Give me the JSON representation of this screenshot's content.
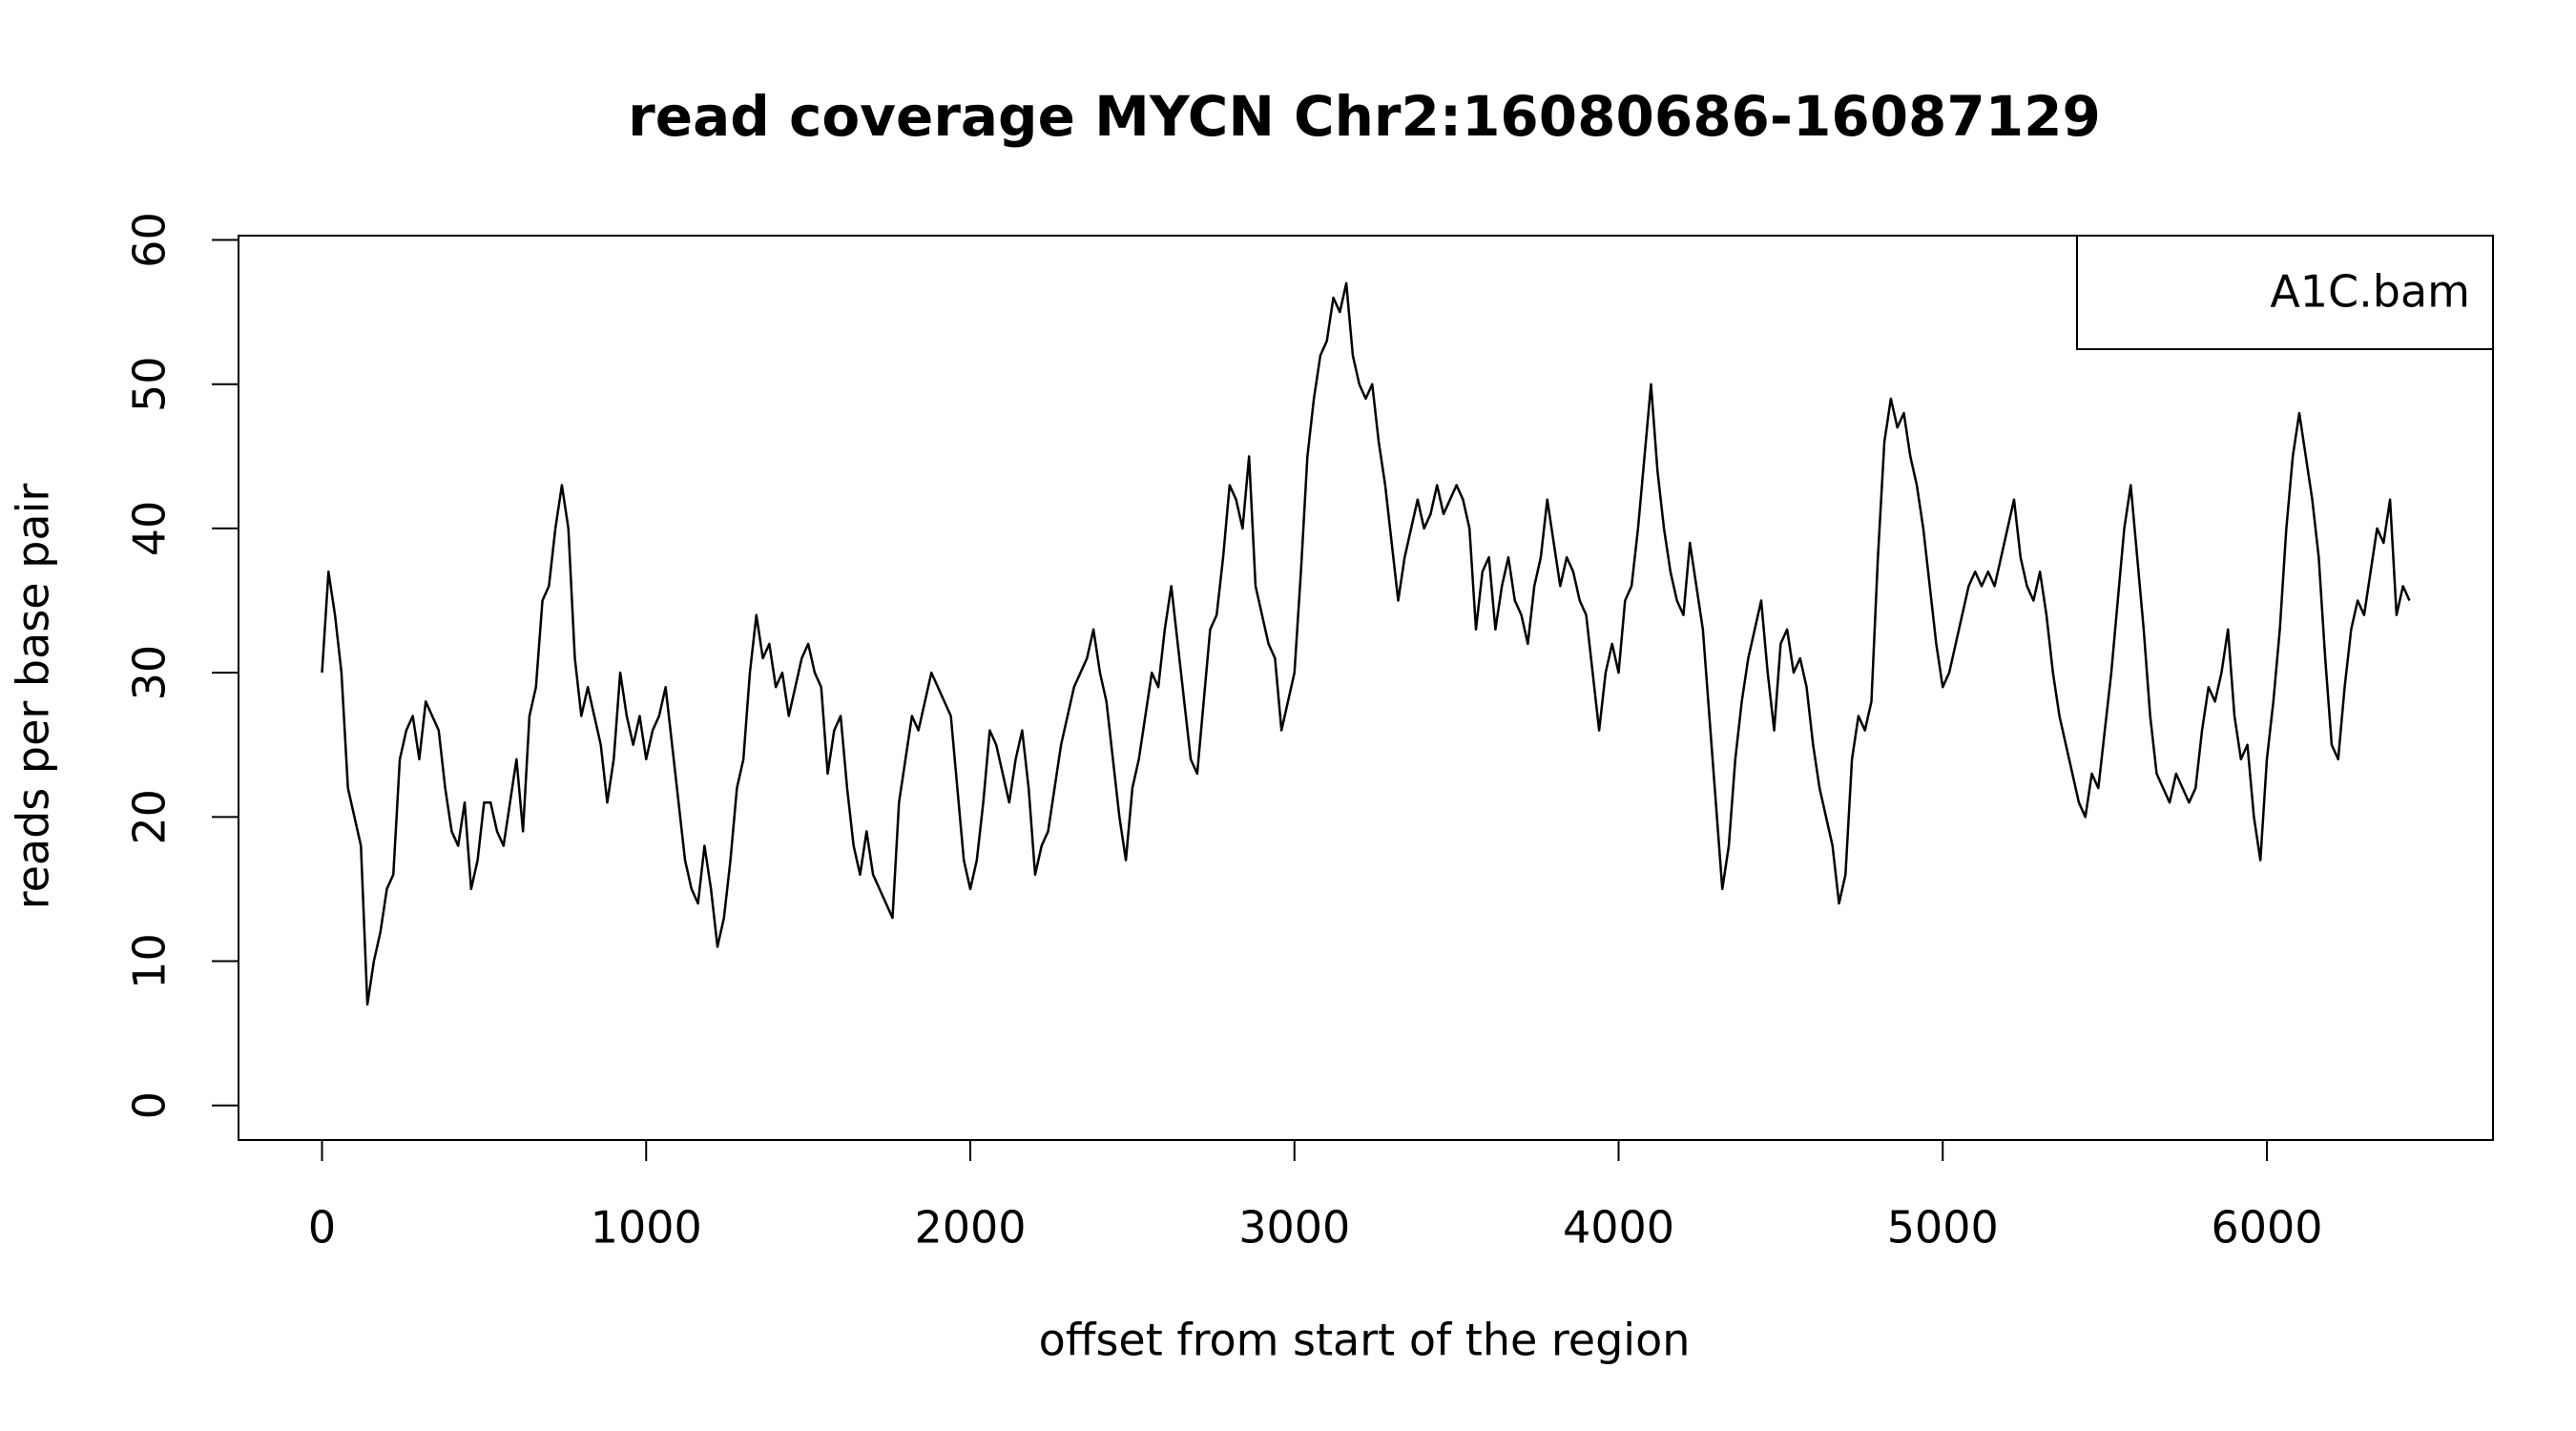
{
  "chart_data": {
    "type": "line",
    "title": "read coverage MYCN  Chr2:16080686-16087129",
    "x_label": "offset from start of the region",
    "y_label": "reads per base pair",
    "legend_position": "topright",
    "xlim": [
      -257.6,
      6697.6
    ],
    "ylim": [
      -2.4,
      60.3
    ],
    "xticks": [
      0,
      1000,
      2000,
      3000,
      4000,
      5000,
      6000
    ],
    "yticks": [
      0,
      10,
      20,
      30,
      40,
      50,
      60
    ],
    "x": [
      0,
      20,
      40,
      60,
      80,
      100,
      120,
      140,
      160,
      180,
      200,
      220,
      240,
      260,
      280,
      300,
      320,
      340,
      360,
      380,
      400,
      420,
      440,
      460,
      480,
      500,
      520,
      540,
      560,
      580,
      600,
      620,
      640,
      660,
      680,
      700,
      720,
      740,
      760,
      780,
      800,
      820,
      840,
      860,
      880,
      900,
      920,
      940,
      960,
      980,
      1000,
      1020,
      1040,
      1060,
      1080,
      1100,
      1120,
      1140,
      1160,
      1180,
      1200,
      1220,
      1240,
      1260,
      1280,
      1300,
      1320,
      1340,
      1360,
      1380,
      1400,
      1420,
      1440,
      1460,
      1480,
      1500,
      1520,
      1540,
      1560,
      1580,
      1600,
      1620,
      1640,
      1660,
      1680,
      1700,
      1720,
      1740,
      1760,
      1780,
      1800,
      1820,
      1840,
      1860,
      1880,
      1900,
      1920,
      1940,
      1960,
      1980,
      2000,
      2020,
      2040,
      2060,
      2080,
      2100,
      2120,
      2140,
      2160,
      2180,
      2200,
      2220,
      2240,
      2260,
      2280,
      2300,
      2320,
      2340,
      2360,
      2380,
      2400,
      2420,
      2440,
      2460,
      2480,
      2500,
      2520,
      2540,
      2560,
      2580,
      2600,
      2620,
      2640,
      2660,
      2680,
      2700,
      2720,
      2740,
      2760,
      2780,
      2800,
      2820,
      2840,
      2860,
      2880,
      2900,
      2920,
      2940,
      2960,
      2980,
      3000,
      3020,
      3040,
      3060,
      3080,
      3100,
      3120,
      3140,
      3160,
      3180,
      3200,
      3220,
      3240,
      3260,
      3280,
      3300,
      3320,
      3340,
      3360,
      3380,
      3400,
      3420,
      3440,
      3460,
      3480,
      3500,
      3520,
      3540,
      3560,
      3580,
      3600,
      3620,
      3640,
      3660,
      3680,
      3700,
      3720,
      3740,
      3760,
      3780,
      3800,
      3820,
      3840,
      3860,
      3880,
      3900,
      3920,
      3940,
      3960,
      3980,
      4000,
      4020,
      4040,
      4060,
      4080,
      4100,
      4120,
      4140,
      4160,
      4180,
      4200,
      4220,
      4240,
      4260,
      4280,
      4300,
      4320,
      4340,
      4360,
      4380,
      4400,
      4420,
      4440,
      4460,
      4480,
      4500,
      4520,
      4540,
      4560,
      4580,
      4600,
      4620,
      4640,
      4660,
      4680,
      4700,
      4720,
      4740,
      4760,
      4780,
      4800,
      4820,
      4840,
      4860,
      4880,
      4900,
      4920,
      4940,
      4960,
      4980,
      5000,
      5020,
      5040,
      5060,
      5080,
      5100,
      5120,
      5140,
      5160,
      5180,
      5200,
      5220,
      5240,
      5260,
      5280,
      5300,
      5320,
      5340,
      5360,
      5380,
      5400,
      5420,
      5440,
      5460,
      5480,
      5500,
      5520,
      5540,
      5560,
      5580,
      5600,
      5620,
      5640,
      5660,
      5680,
      5700,
      5720,
      5740,
      5760,
      5780,
      5800,
      5820,
      5840,
      5860,
      5880,
      5900,
      5920,
      5940,
      5960,
      5980,
      6000,
      6020,
      6040,
      6060,
      6080,
      6100,
      6120,
      6140,
      6160,
      6180,
      6200,
      6220,
      6240,
      6260,
      6280,
      6300,
      6320,
      6340,
      6360,
      6380,
      6400,
      6420,
      6440
    ],
    "series": [
      {
        "name": "A1C.bam",
        "color": "#000000",
        "values": [
          30,
          37,
          34,
          30,
          22,
          20,
          18,
          7,
          10,
          12,
          15,
          16,
          24,
          26,
          27,
          24,
          28,
          27,
          26,
          22,
          19,
          18,
          21,
          15,
          17,
          21,
          21,
          19,
          18,
          21,
          24,
          19,
          27,
          29,
          35,
          36,
          40,
          43,
          40,
          31,
          27,
          29,
          27,
          25,
          21,
          24,
          30,
          27,
          25,
          27,
          24,
          26,
          27,
          29,
          25,
          21,
          17,
          15,
          14,
          18,
          15,
          11,
          13,
          17,
          22,
          24,
          30,
          34,
          31,
          32,
          29,
          30,
          27,
          29,
          31,
          32,
          30,
          29,
          23,
          26,
          27,
          22,
          18,
          16,
          19,
          16,
          15,
          14,
          13,
          21,
          24,
          27,
          26,
          28,
          30,
          29,
          28,
          27,
          22,
          17,
          15,
          17,
          21,
          26,
          25,
          23,
          21,
          24,
          26,
          22,
          16,
          18,
          19,
          22,
          25,
          27,
          29,
          30,
          31,
          33,
          30,
          28,
          24,
          20,
          17,
          22,
          24,
          27,
          30,
          29,
          33,
          36,
          32,
          28,
          24,
          23,
          28,
          33,
          34,
          38,
          43,
          42,
          40,
          45,
          36,
          34,
          32,
          31,
          26,
          28,
          30,
          37,
          45,
          49,
          52,
          53,
          56,
          55,
          57,
          52,
          50,
          49,
          50,
          46,
          43,
          39,
          35,
          38,
          40,
          42,
          40,
          41,
          43,
          41,
          42,
          43,
          42,
          40,
          33,
          37,
          38,
          33,
          36,
          38,
          35,
          34,
          32,
          36,
          38,
          42,
          39,
          36,
          38,
          37,
          35,
          34,
          30,
          26,
          30,
          32,
          30,
          35,
          36,
          40,
          45,
          50,
          44,
          40,
          37,
          35,
          34,
          39,
          36,
          33,
          27,
          21,
          15,
          18,
          24,
          28,
          31,
          33,
          35,
          30,
          26,
          32,
          33,
          30,
          31,
          29,
          25,
          22,
          20,
          18,
          14,
          16,
          24,
          27,
          26,
          28,
          38,
          46,
          49,
          47,
          48,
          45,
          43,
          40,
          36,
          32,
          29,
          30,
          32,
          34,
          36,
          37,
          36,
          37,
          36,
          38,
          40,
          42,
          38,
          36,
          35,
          37,
          34,
          30,
          27,
          25,
          23,
          21,
          20,
          23,
          22,
          26,
          30,
          35,
          40,
          43,
          38,
          33,
          27,
          23,
          22,
          21,
          23,
          22,
          21,
          22,
          26,
          29,
          28,
          30,
          33,
          27,
          24,
          25,
          20,
          17,
          24,
          28,
          33,
          40,
          45,
          48,
          45,
          42,
          38,
          31,
          25,
          24,
          29,
          33,
          35,
          34,
          37,
          40,
          39,
          42,
          34,
          36,
          35
        ]
      }
    ]
  }
}
